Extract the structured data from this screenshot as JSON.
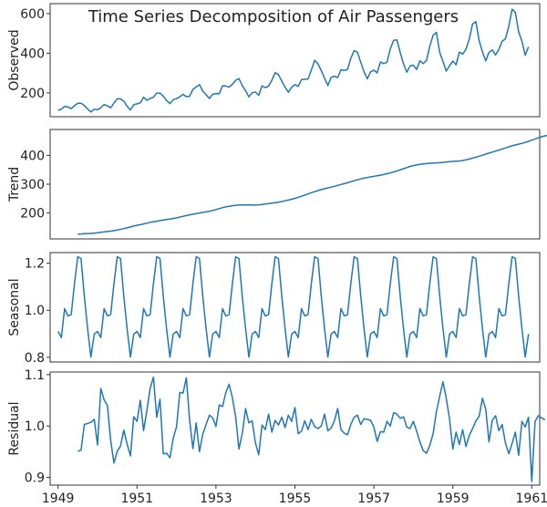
{
  "title": "Time Series Decomposition of Air Passengers",
  "chart_data": [
    {
      "type": "line",
      "ylabel": "Observed",
      "xlim": [
        1948.8,
        1961.2
      ],
      "ylim": [
        80,
        650
      ],
      "yticks": [
        200,
        400,
        600
      ],
      "color": "#1f77b4",
      "series": [
        {
          "x_start": 1949.0,
          "x_step": 0.08333,
          "values": [
            112,
            118,
            132,
            129,
            121,
            135,
            148,
            148,
            136,
            119,
            104,
            118,
            115,
            126,
            141,
            135,
            125,
            149,
            170,
            170,
            158,
            133,
            114,
            140,
            145,
            150,
            178,
            163,
            172,
            178,
            199,
            199,
            184,
            162,
            146,
            166,
            171,
            180,
            193,
            181,
            183,
            218,
            230,
            242,
            209,
            191,
            172,
            194,
            196,
            196,
            236,
            235,
            229,
            243,
            264,
            272,
            237,
            211,
            180,
            201,
            204,
            188,
            235,
            227,
            234,
            264,
            302,
            293,
            259,
            229,
            203,
            229,
            242,
            233,
            267,
            269,
            270,
            315,
            364,
            347,
            312,
            274,
            237,
            278,
            284,
            277,
            317,
            313,
            318,
            374,
            413,
            405,
            355,
            306,
            271,
            306,
            315,
            301,
            356,
            348,
            355,
            422,
            465,
            467,
            404,
            347,
            305,
            336,
            340,
            318,
            362,
            348,
            363,
            435,
            491,
            505,
            404,
            359,
            310,
            337,
            360,
            342,
            406,
            396,
            420,
            472,
            548,
            559,
            463,
            407,
            362,
            405,
            417,
            391,
            419,
            461,
            472,
            535,
            622,
            606,
            508,
            461,
            390,
            432
          ]
        }
      ]
    },
    {
      "type": "line",
      "ylabel": "Trend",
      "xlim": [
        1948.8,
        1961.2
      ],
      "ylim": [
        110,
        490
      ],
      "yticks": [
        200,
        300,
        400
      ],
      "color": "#1f77b4",
      "series": [
        {
          "x_start": 1949.5,
          "x_step": 0.08333,
          "values": [
            126.8,
            127.2,
            127.9,
            128.6,
            129.0,
            129.8,
            131.3,
            133.1,
            134.6,
            135.8,
            137.0,
            138.8,
            140.9,
            143.2,
            145.7,
            148.4,
            151.5,
            154.7,
            157.1,
            159.5,
            161.8,
            164.8,
            167.5,
            169.5,
            171.3,
            173.5,
            175.5,
            177.5,
            179.0,
            181.0,
            183.1,
            185.8,
            188.6,
            191.2,
            193.6,
            195.8,
            197.8,
            199.8,
            201.8,
            204.1,
            206.4,
            208.7,
            211.8,
            215.2,
            218.5,
            221.1,
            223.3,
            225.4,
            226.8,
            227.4,
            227.9,
            228.0,
            227.9,
            227.5,
            227.4,
            228.0,
            229.3,
            231.1,
            233.0,
            234.6,
            236.1,
            237.7,
            239.7,
            242.3,
            244.9,
            247.7,
            250.8,
            254.4,
            258.1,
            261.9,
            266.1,
            270.4,
            274.1,
            277.8,
            281.2,
            284.2,
            287.1,
            289.9,
            292.8,
            295.9,
            299.0,
            302.0,
            305.1,
            308.5,
            311.9,
            315.3,
            318.3,
            320.8,
            323.2,
            325.4,
            327.3,
            329.4,
            331.5,
            333.5,
            336.3,
            339.1,
            342.5,
            346.2,
            350.0,
            353.8,
            357.7,
            361.6,
            364.6,
            366.8,
            368.8,
            370.3,
            371.5,
            372.5,
            373.3,
            374.0,
            374.8,
            375.8,
            377.0,
            378.4,
            379.2,
            379.7,
            380.5,
            382.1,
            384.6,
            387.5,
            390.6,
            393.8,
            397.2,
            400.8,
            404.5,
            408.0,
            411.5,
            414.9,
            418.5,
            422.1,
            425.8,
            429.7,
            433.3,
            436.2,
            438.9,
            441.8,
            445.0,
            448.9,
            453.0,
            457.1,
            461.0,
            464.8,
            467.8,
            470.2,
            472.6,
            475.0
          ]
        }
      ]
    },
    {
      "type": "line",
      "ylabel": "Seasonal",
      "xlim": [
        1948.8,
        1961.2
      ],
      "ylim": [
        0.78,
        1.245
      ],
      "yticks": [
        0.8,
        1.0,
        1.2
      ],
      "color": "#1f77b4",
      "series": [
        {
          "x_start": 1949.0,
          "x_step": 0.08333,
          "pattern": [
            0.91,
            0.884,
            1.007,
            0.976,
            0.981,
            1.113,
            1.227,
            1.22,
            1.06,
            0.922,
            0.801,
            0.899
          ],
          "repeat": 12
        }
      ]
    },
    {
      "type": "line",
      "ylabel": "Residual",
      "xlim": [
        1948.8,
        1961.2
      ],
      "ylim": [
        0.885,
        1.105
      ],
      "yticks": [
        0.9,
        1.0,
        1.1
      ],
      "color": "#1f77b4",
      "series": [
        {
          "x_start": 1949.5,
          "x_step": 0.08333,
          "values": [
            0.951,
            0.953,
            1.003,
            1.005,
            1.007,
            1.013,
            0.963,
            1.073,
            1.051,
            1.04,
            0.972,
            0.928,
            0.951,
            0.961,
            0.992,
            0.965,
            0.942,
            1.018,
            1.009,
            1.05,
            0.991,
            1.03,
            1.073,
            1.095,
            1.017,
            1.052,
            0.946,
            0.947,
            0.938,
            0.976,
            0.998,
            1.065,
            1.064,
            1.094,
            1.011,
            0.956,
            1.006,
            0.95,
            0.984,
            1.003,
            1.021,
            1.016,
            0.999,
            1.041,
            1.038,
            1.065,
            1.081,
            1.055,
            1.018,
            0.955,
            0.986,
            1.034,
            1.006,
            1.01,
            0.967,
            0.944,
            1.002,
            0.993,
            1.023,
            0.988,
            1.011,
            1.002,
            1.017,
            0.997,
            1.021,
            1.009,
            1.036,
            0.985,
            0.99,
            1.01,
            0.993,
            1.013,
            0.999,
            0.995,
            1.0,
            1.023,
            0.991,
            0.996,
            1.01,
            1.034,
            0.993,
            0.986,
            0.983,
            1.003,
            1.017,
            1.021,
            1.003,
            1.014,
            1.013,
            1.011,
            0.998,
            0.97,
            0.989,
            0.988,
            1.009,
            1.0,
            1.026,
            1.023,
            1.015,
            1.018,
            0.998,
            0.995,
            1.009,
            0.99,
            0.969,
            0.952,
            0.947,
            0.962,
            0.985,
            1.028,
            1.058,
            1.086,
            1.054,
            1.014,
            0.955,
            0.988,
            0.964,
            0.993,
            0.96,
            0.982,
            0.995,
            1.01,
            1.019,
            1.054,
            1.033,
            0.969,
            1.011,
            1.02,
            0.991,
            1.003,
            0.967,
            0.946,
            0.966,
            0.988,
            0.943,
            1.009,
            0.998,
            1.017,
            0.892,
            1.009,
            1.02,
            1.016,
            1.012
          ]
        }
      ]
    }
  ],
  "xticks": [
    "1949",
    "1951",
    "1953",
    "1955",
    "1957",
    "1959",
    "1961"
  ],
  "xtick_values": [
    1949,
    1951,
    1953,
    1955,
    1957,
    1959,
    1961
  ]
}
